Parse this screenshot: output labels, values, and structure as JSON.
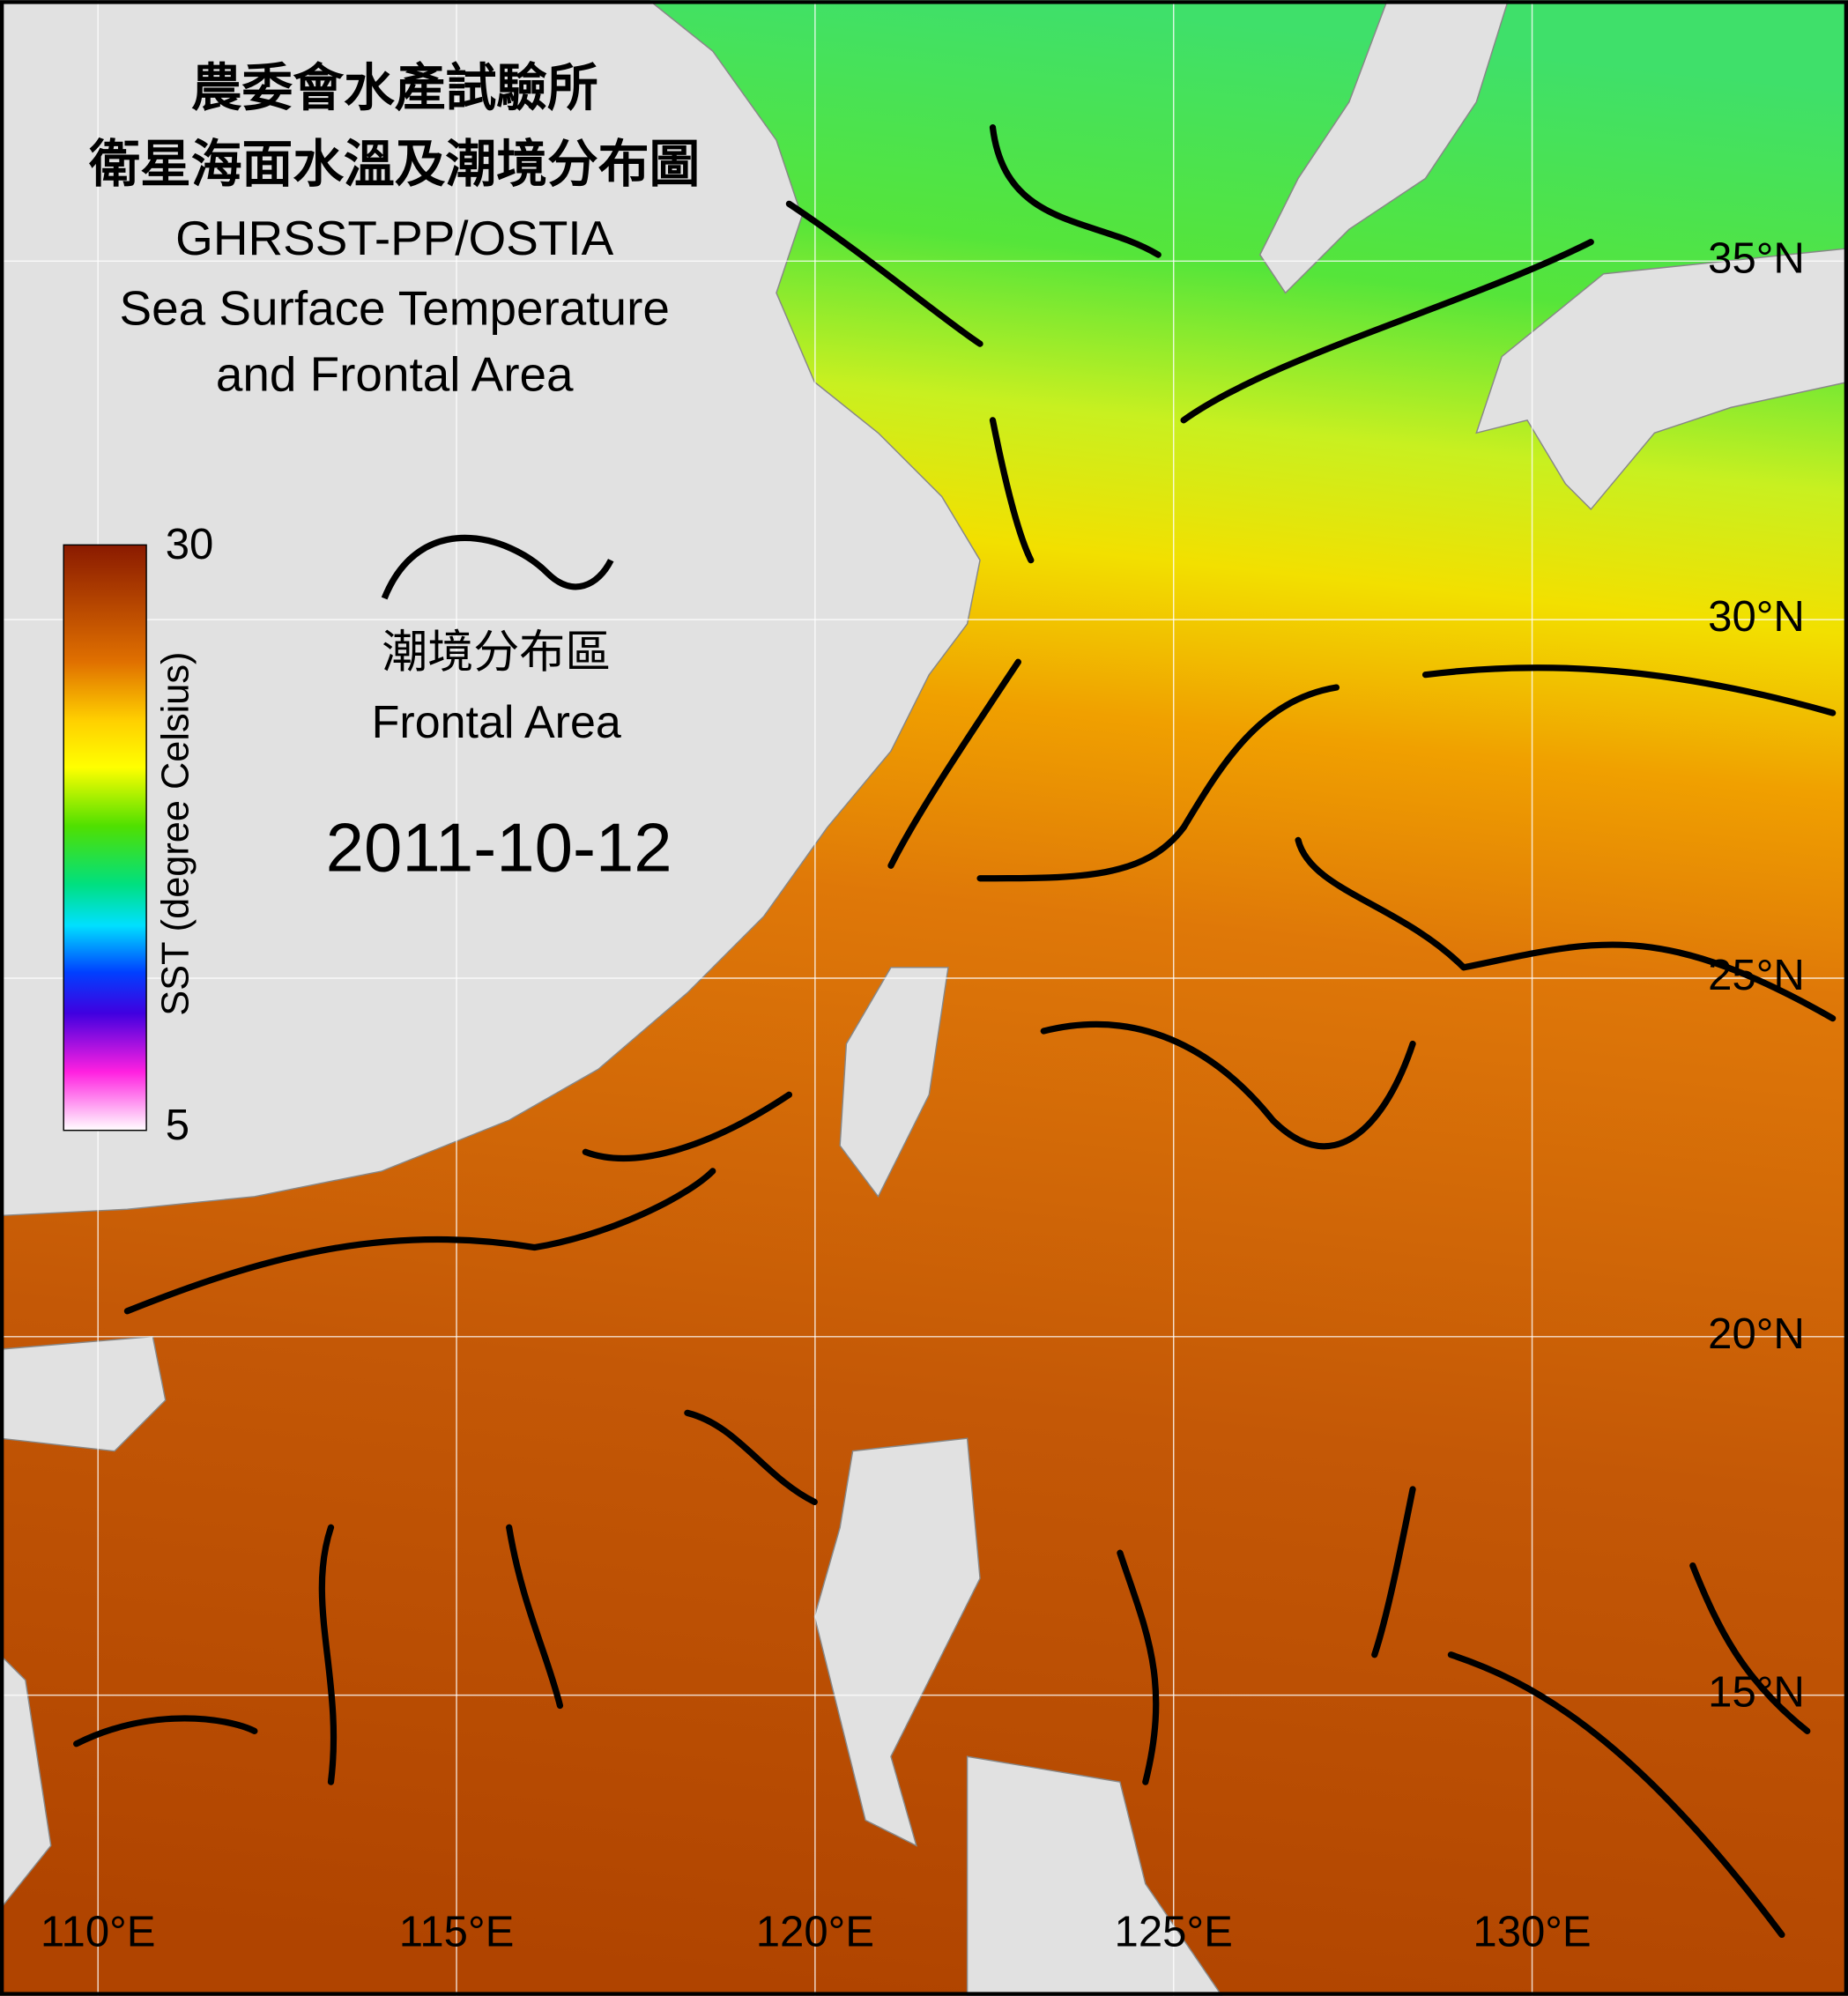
{
  "header": {
    "title_lines": [
      "農委會水產試驗所",
      "衛星海面水溫及潮境分布圖",
      "GHRSST-PP/OSTIA",
      "Sea Surface Temperature",
      "and Frontal Area"
    ]
  },
  "colorbar": {
    "label": "SST (degree Celsius)",
    "ticks": [
      30,
      5
    ]
  },
  "legend": {
    "label_zh": "潮境分布區",
    "label_en": "Frontal Area"
  },
  "date": "2011-10-12",
  "map": {
    "lat_labels": [
      "35°N",
      "30°N",
      "25°N",
      "20°N",
      "15°N"
    ],
    "lon_labels": [
      "110°E",
      "115°E",
      "120°E",
      "125°E",
      "130°E"
    ]
  }
}
